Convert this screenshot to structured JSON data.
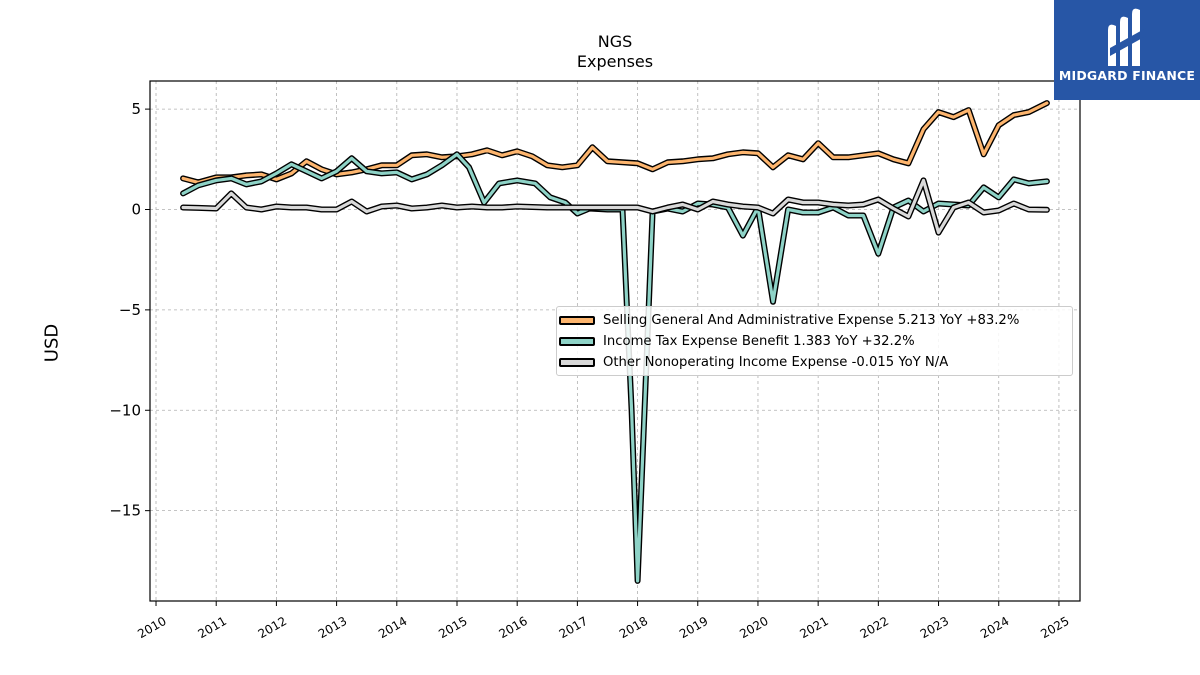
{
  "header": {
    "ticker": "NGS",
    "subtitle": "Expenses"
  },
  "brand": {
    "name": "MIDGARD FINANCE",
    "color": "#2756a6"
  },
  "legend": {
    "items": [
      {
        "label": "Selling General And Administrative Expense  5.213 YoY +83.2%",
        "color": "#fdb56e"
      },
      {
        "label": "Income Tax Expense Benefit  1.383 YoY +32.2%",
        "color": "#8ed3c7"
      },
      {
        "label": "Other Nonoperating Income Expense  -0.015 YoY N/A",
        "color": "#d9d9d9"
      }
    ]
  },
  "chart_data": {
    "type": "line",
    "title": "NGS\nExpenses",
    "xlabel": "",
    "ylabel": "USD",
    "xlim": [
      2009.9,
      2025.35
    ],
    "ylim": [
      -19.5,
      6.4
    ],
    "x_ticks": [
      "2010",
      "2011",
      "2012",
      "2013",
      "2014",
      "2015",
      "2016",
      "2017",
      "2018",
      "2019",
      "2020",
      "2021",
      "2022",
      "2023",
      "2024",
      "2025"
    ],
    "y_ticks": [
      5,
      0,
      -5,
      -10,
      -15
    ],
    "y_tick_labels": [
      "5",
      "0",
      "−5",
      "−10",
      "−15"
    ],
    "grid": true,
    "legend_position": "center-right",
    "series": [
      {
        "name": "Selling General And Administrative Expense  5.213 YoY +83.2%",
        "color": "#fdb56e",
        "x": [
          2010.45,
          2010.7,
          2011.0,
          2011.25,
          2011.5,
          2011.75,
          2012.0,
          2012.25,
          2012.5,
          2012.75,
          2013.0,
          2013.25,
          2013.5,
          2013.75,
          2014.0,
          2014.25,
          2014.5,
          2014.75,
          2015.0,
          2015.25,
          2015.5,
          2015.75,
          2016.0,
          2016.25,
          2016.5,
          2016.75,
          2017.0,
          2017.25,
          2017.5,
          2017.75,
          2018.0,
          2018.25,
          2018.5,
          2018.75,
          2019.0,
          2019.25,
          2019.5,
          2019.75,
          2020.0,
          2020.25,
          2020.5,
          2020.75,
          2021.0,
          2021.25,
          2021.5,
          2021.75,
          2022.0,
          2022.25,
          2022.5,
          2022.75,
          2023.0,
          2023.25,
          2023.5,
          2023.75,
          2024.0,
          2024.25,
          2024.5,
          2024.8
        ],
        "y": [
          1.55,
          1.35,
          1.6,
          1.6,
          1.7,
          1.75,
          1.5,
          1.8,
          2.4,
          2.0,
          1.75,
          1.85,
          2.0,
          2.2,
          2.2,
          2.7,
          2.75,
          2.6,
          2.65,
          2.75,
          2.95,
          2.7,
          2.9,
          2.65,
          2.2,
          2.1,
          2.2,
          3.1,
          2.4,
          2.35,
          2.3,
          2.0,
          2.35,
          2.4,
          2.5,
          2.55,
          2.75,
          2.85,
          2.8,
          2.1,
          2.7,
          2.5,
          3.3,
          2.6,
          2.6,
          2.7,
          2.8,
          2.5,
          2.3,
          4.0,
          4.85,
          4.6,
          4.95,
          2.75,
          4.2,
          4.7,
          4.85,
          5.3
        ]
      },
      {
        "name": "Income Tax Expense Benefit  1.383 YoY +32.2%",
        "color": "#8ed3c7",
        "x": [
          2010.45,
          2010.7,
          2011.0,
          2011.25,
          2011.5,
          2011.75,
          2012.0,
          2012.25,
          2012.5,
          2012.75,
          2013.0,
          2013.25,
          2013.5,
          2013.75,
          2014.0,
          2014.25,
          2014.5,
          2014.75,
          2015.0,
          2015.2,
          2015.45,
          2015.7,
          2016.0,
          2016.3,
          2016.55,
          2016.8,
          2017.0,
          2017.2,
          2017.5,
          2017.75,
          2017.9,
          2018.0,
          2018.25,
          2018.5,
          2018.75,
          2019.0,
          2019.25,
          2019.5,
          2019.75,
          2020.0,
          2020.25,
          2020.5,
          2020.75,
          2021.0,
          2021.25,
          2021.5,
          2021.75,
          2022.0,
          2022.25,
          2022.5,
          2022.75,
          2023.0,
          2023.25,
          2023.5,
          2023.75,
          2024.0,
          2024.25,
          2024.5,
          2024.8
        ],
        "y": [
          0.8,
          1.2,
          1.45,
          1.55,
          1.25,
          1.4,
          1.8,
          2.25,
          1.9,
          1.55,
          1.9,
          2.55,
          1.9,
          1.8,
          1.85,
          1.5,
          1.75,
          2.2,
          2.75,
          2.1,
          0.35,
          1.3,
          1.45,
          1.3,
          0.6,
          0.35,
          -0.2,
          0.05,
          0.0,
          0.0,
          -10.0,
          -18.5,
          -0.1,
          0.05,
          -0.1,
          0.3,
          0.25,
          0.1,
          -1.3,
          0.1,
          -4.6,
          0.0,
          -0.15,
          -0.15,
          0.1,
          -0.3,
          -0.3,
          -2.2,
          0.1,
          0.45,
          -0.1,
          0.3,
          0.25,
          0.2,
          1.1,
          0.6,
          1.5,
          1.3,
          1.4
        ]
      },
      {
        "name": "Other Nonoperating Income Expense  -0.015 YoY N/A",
        "color": "#d9d9d9",
        "x": [
          2010.45,
          2010.7,
          2011.0,
          2011.25,
          2011.5,
          2011.75,
          2012.0,
          2012.25,
          2012.5,
          2012.75,
          2013.0,
          2013.25,
          2013.5,
          2013.75,
          2014.0,
          2014.25,
          2014.5,
          2014.75,
          2015.0,
          2015.25,
          2015.5,
          2015.75,
          2016.0,
          2016.5,
          2017.0,
          2017.5,
          2018.0,
          2018.25,
          2018.5,
          2018.75,
          2019.0,
          2019.25,
          2019.5,
          2019.75,
          2020.0,
          2020.25,
          2020.5,
          2020.75,
          2021.0,
          2021.25,
          2021.5,
          2021.75,
          2022.0,
          2022.25,
          2022.5,
          2022.75,
          2023.0,
          2023.25,
          2023.5,
          2023.75,
          2024.0,
          2024.25,
          2024.5,
          2024.8
        ],
        "y": [
          0.1,
          0.08,
          0.05,
          0.8,
          0.1,
          0.0,
          0.15,
          0.1,
          0.1,
          0.0,
          0.0,
          0.4,
          -0.1,
          0.15,
          0.2,
          0.05,
          0.1,
          0.2,
          0.1,
          0.15,
          0.1,
          0.1,
          0.15,
          0.1,
          0.1,
          0.1,
          0.1,
          -0.1,
          0.1,
          0.25,
          0.0,
          0.4,
          0.25,
          0.15,
          0.1,
          -0.2,
          0.5,
          0.35,
          0.35,
          0.25,
          0.2,
          0.25,
          0.5,
          0.05,
          -0.35,
          1.45,
          -1.15,
          0.1,
          0.35,
          -0.15,
          -0.05,
          0.3,
          0.0,
          -0.015
        ]
      }
    ]
  }
}
